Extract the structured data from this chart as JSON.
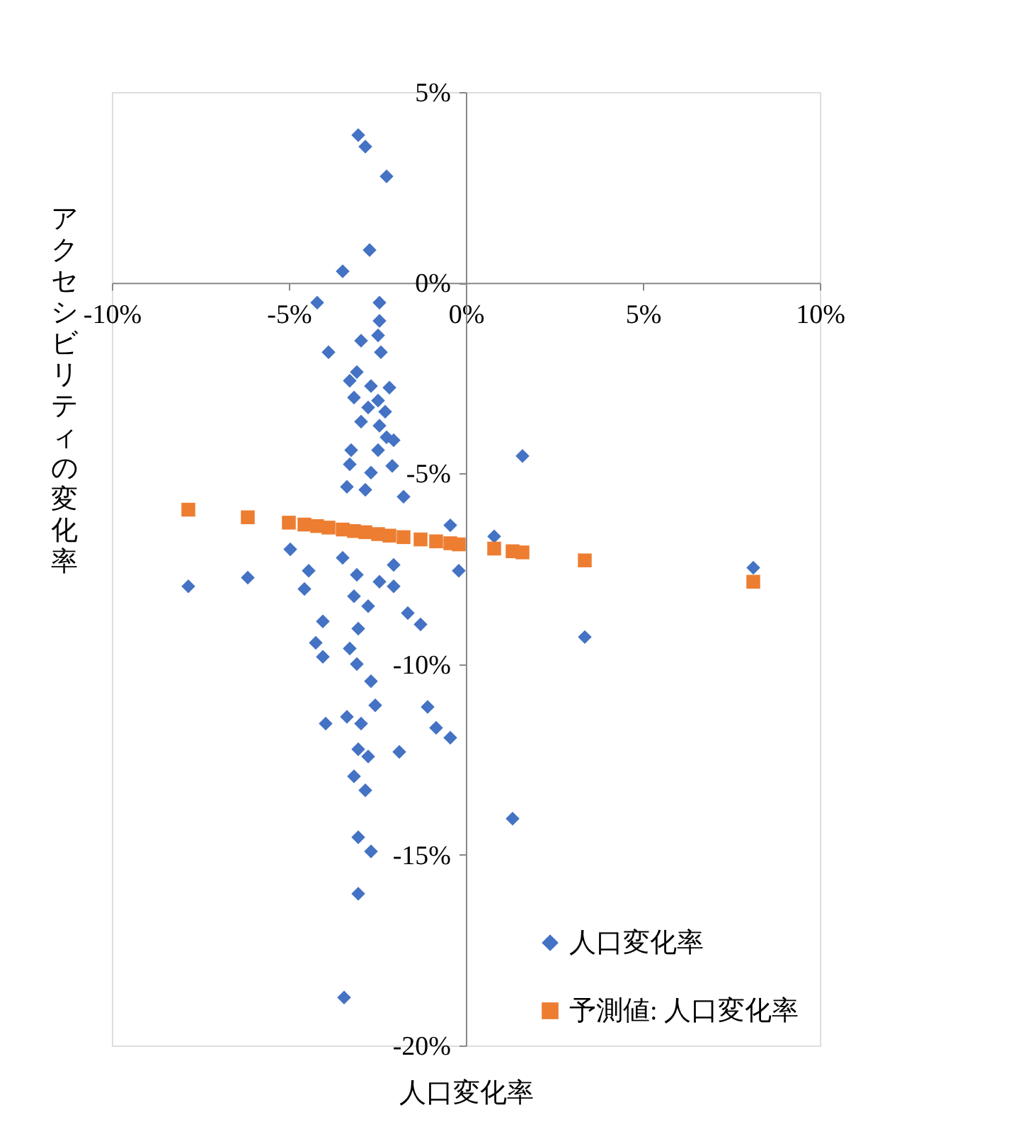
{
  "chart_data": {
    "type": "scatter",
    "xlabel": "人口変化率",
    "ylabel": "アクセシビリティの変化率",
    "xlim": [
      -10,
      10
    ],
    "ylim": [
      -20,
      5
    ],
    "xticks": [
      {
        "value": -10,
        "label": "-10%"
      },
      {
        "value": -5,
        "label": "-5%"
      },
      {
        "value": 0,
        "label": "0%"
      },
      {
        "value": 5,
        "label": "5%"
      },
      {
        "value": 10,
        "label": "10%"
      }
    ],
    "yticks": [
      {
        "value": 5,
        "label": "5%"
      },
      {
        "value": 0,
        "label": "0%"
      },
      {
        "value": -5,
        "label": "-5%"
      },
      {
        "value": -10,
        "label": "-10%"
      },
      {
        "value": -15,
        "label": "-15%"
      },
      {
        "value": -20,
        "label": "-20%"
      }
    ],
    "grid": false,
    "legend": "bottom right",
    "series": [
      {
        "name": "人口変化率",
        "color": "#4472c4",
        "marker": "diamond",
        "x": [
          -3.04,
          -2.84,
          -2.24,
          -2.72,
          -3.48,
          -4.2,
          -2.44,
          -2.44,
          -2.48,
          -2.96,
          -2.4,
          -3.88,
          -3.08,
          -3.28,
          -2.68,
          -2.16,
          -3.16,
          -2.48,
          -2.76,
          -2.28,
          -2.96,
          -2.44,
          -2.24,
          -2.04,
          -3.24,
          -2.48,
          -3.28,
          -2.08,
          -2.68,
          -3.36,
          -2.84,
          -1.76,
          -0.44,
          -4.96,
          -3.48,
          -4.44,
          -3.08,
          -2.04,
          -2.44,
          -2.04,
          -4.56,
          -3.16,
          -2.76,
          -1.64,
          -1.28,
          -4.04,
          -3.04,
          -4.24,
          -4.04,
          -3.28,
          -3.08,
          -2.68,
          -2.56,
          -1.08,
          -3.96,
          -3.36,
          -2.96,
          -0.84,
          -0.44,
          -3.04,
          -2.76,
          -1.88,
          -3.16,
          -2.84,
          -3.04,
          -2.68,
          -3.04,
          -3.44,
          -7.84,
          -6.16,
          1.6,
          0.8,
          -0.2,
          8.12,
          3.36,
          1.32
        ],
        "values": [
          3.87,
          3.57,
          2.79,
          0.86,
          0.3,
          -0.52,
          -0.52,
          -1.0,
          -1.38,
          -1.52,
          -1.82,
          -1.82,
          -2.34,
          -2.57,
          -2.71,
          -2.75,
          -3.01,
          -3.09,
          -3.27,
          -3.38,
          -3.64,
          -3.75,
          -4.05,
          -4.13,
          -4.39,
          -4.39,
          -4.76,
          -4.8,
          -4.98,
          -5.35,
          -5.43,
          -5.61,
          -6.36,
          -6.99,
          -7.21,
          -7.55,
          -7.66,
          -7.4,
          -7.84,
          -7.96,
          -8.03,
          -8.22,
          -8.48,
          -8.66,
          -8.96,
          -8.88,
          -9.07,
          -9.44,
          -9.81,
          -9.59,
          -10.0,
          -10.45,
          -11.08,
          -11.12,
          -11.56,
          -11.38,
          -11.56,
          -11.67,
          -11.93,
          -12.23,
          -12.42,
          -12.3,
          -12.94,
          -13.31,
          -14.54,
          -14.91,
          -16.02,
          -18.74,
          -7.96,
          -7.73,
          -4.54,
          -6.65,
          -7.55,
          -7.47,
          -9.29,
          -14.05
        ]
      },
      {
        "name": "予測値: 人口変化率",
        "color": "#ed7d31",
        "marker": "square",
        "x": [
          -7.84,
          -6.16,
          -5.0,
          -4.56,
          -4.2,
          -3.88,
          -3.48,
          -3.16,
          -2.84,
          -2.48,
          -2.16,
          -1.76,
          -1.28,
          -0.84,
          -0.44,
          -0.2,
          0.8,
          1.32,
          1.6,
          3.36,
          8.12
        ],
        "values": [
          -5.95,
          -6.15,
          -6.29,
          -6.34,
          -6.38,
          -6.42,
          -6.47,
          -6.51,
          -6.54,
          -6.59,
          -6.63,
          -6.67,
          -6.73,
          -6.78,
          -6.83,
          -6.86,
          -6.97,
          -7.04,
          -7.07,
          -7.28,
          -7.84
        ]
      }
    ]
  }
}
